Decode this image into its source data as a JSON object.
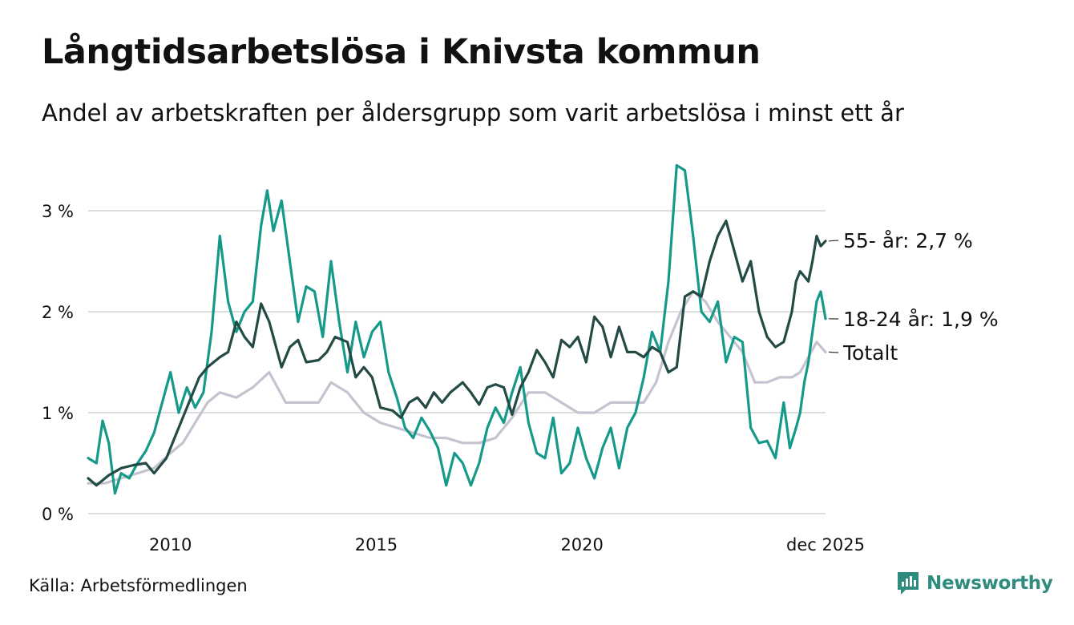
{
  "header": {
    "title": "Långtidsarbetslösa i Knivsta kommun",
    "subtitle": "Andel av arbetskraften per åldersgrupp som varit arbetslösa i minst ett år"
  },
  "footer": {
    "source": "Källa: Arbetsförmedlingen",
    "brand": "Newsworthy"
  },
  "colors": {
    "series_55": "#234a44",
    "series_1824": "#159a8a",
    "series_total": "#c5c3cf",
    "grid": "#dddddd",
    "brand": "#2e8b7e"
  },
  "chart_data": {
    "type": "line",
    "title": "Långtidsarbetslösa i Knivsta kommun",
    "xlabel": "",
    "ylabel": "",
    "x_range": [
      2008.0,
      2025.917
    ],
    "ylim": [
      0,
      3.5
    ],
    "y_ticks": [
      0,
      1,
      2,
      3
    ],
    "y_tick_labels": [
      "0 %",
      "1 %",
      "2 %",
      "3 %"
    ],
    "x_ticks": [
      2010,
      2015,
      2020,
      2025.917
    ],
    "x_tick_labels": [
      "2010",
      "2015",
      "2020",
      "dec 2025"
    ],
    "grid": true,
    "legend": "end-of-line labels",
    "series": [
      {
        "name": "55- år",
        "label": "55- år: 2,7 %",
        "color_key": "series_55",
        "points": [
          [
            2008.0,
            0.35
          ],
          [
            2008.2,
            0.28
          ],
          [
            2008.5,
            0.38
          ],
          [
            2008.8,
            0.45
          ],
          [
            2009.1,
            0.48
          ],
          [
            2009.4,
            0.5
          ],
          [
            2009.6,
            0.4
          ],
          [
            2009.9,
            0.55
          ],
          [
            2010.1,
            0.75
          ],
          [
            2010.4,
            1.05
          ],
          [
            2010.7,
            1.35
          ],
          [
            2010.9,
            1.45
          ],
          [
            2011.2,
            1.55
          ],
          [
            2011.4,
            1.6
          ],
          [
            2011.6,
            1.9
          ],
          [
            2011.8,
            1.75
          ],
          [
            2012.0,
            1.65
          ],
          [
            2012.2,
            2.08
          ],
          [
            2012.4,
            1.9
          ],
          [
            2012.7,
            1.45
          ],
          [
            2012.9,
            1.65
          ],
          [
            2013.1,
            1.72
          ],
          [
            2013.3,
            1.5
          ],
          [
            2013.6,
            1.52
          ],
          [
            2013.8,
            1.6
          ],
          [
            2014.0,
            1.75
          ],
          [
            2014.3,
            1.7
          ],
          [
            2014.5,
            1.35
          ],
          [
            2014.7,
            1.45
          ],
          [
            2014.9,
            1.35
          ],
          [
            2015.1,
            1.05
          ],
          [
            2015.4,
            1.02
          ],
          [
            2015.6,
            0.95
          ],
          [
            2015.8,
            1.1
          ],
          [
            2016.0,
            1.15
          ],
          [
            2016.2,
            1.05
          ],
          [
            2016.4,
            1.2
          ],
          [
            2016.6,
            1.1
          ],
          [
            2016.8,
            1.2
          ],
          [
            2017.1,
            1.3
          ],
          [
            2017.3,
            1.2
          ],
          [
            2017.5,
            1.08
          ],
          [
            2017.7,
            1.25
          ],
          [
            2017.9,
            1.28
          ],
          [
            2018.1,
            1.25
          ],
          [
            2018.3,
            0.98
          ],
          [
            2018.5,
            1.25
          ],
          [
            2018.7,
            1.4
          ],
          [
            2018.9,
            1.62
          ],
          [
            2019.1,
            1.5
          ],
          [
            2019.3,
            1.35
          ],
          [
            2019.5,
            1.72
          ],
          [
            2019.7,
            1.65
          ],
          [
            2019.9,
            1.75
          ],
          [
            2020.1,
            1.5
          ],
          [
            2020.3,
            1.95
          ],
          [
            2020.5,
            1.85
          ],
          [
            2020.7,
            1.55
          ],
          [
            2020.9,
            1.85
          ],
          [
            2021.1,
            1.6
          ],
          [
            2021.3,
            1.6
          ],
          [
            2021.5,
            1.55
          ],
          [
            2021.7,
            1.65
          ],
          [
            2021.9,
            1.6
          ],
          [
            2022.1,
            1.4
          ],
          [
            2022.3,
            1.45
          ],
          [
            2022.5,
            2.15
          ],
          [
            2022.7,
            2.2
          ],
          [
            2022.9,
            2.15
          ],
          [
            2023.1,
            2.5
          ],
          [
            2023.3,
            2.75
          ],
          [
            2023.5,
            2.9
          ],
          [
            2023.7,
            2.6
          ],
          [
            2023.9,
            2.3
          ],
          [
            2024.1,
            2.5
          ],
          [
            2024.3,
            2.0
          ],
          [
            2024.5,
            1.75
          ],
          [
            2024.7,
            1.65
          ],
          [
            2024.9,
            1.7
          ],
          [
            2025.0,
            1.85
          ],
          [
            2025.1,
            2.0
          ],
          [
            2025.2,
            2.3
          ],
          [
            2025.3,
            2.4
          ],
          [
            2025.4,
            2.35
          ],
          [
            2025.5,
            2.3
          ],
          [
            2025.6,
            2.5
          ],
          [
            2025.7,
            2.75
          ],
          [
            2025.8,
            2.65
          ],
          [
            2025.917,
            2.7
          ]
        ]
      },
      {
        "name": "18-24 år",
        "label": "18-24 år: 1,9 %",
        "color_key": "series_1824",
        "points": [
          [
            2008.0,
            0.55
          ],
          [
            2008.2,
            0.5
          ],
          [
            2008.35,
            0.92
          ],
          [
            2008.5,
            0.7
          ],
          [
            2008.65,
            0.2
          ],
          [
            2008.8,
            0.4
          ],
          [
            2009.0,
            0.35
          ],
          [
            2009.2,
            0.5
          ],
          [
            2009.4,
            0.62
          ],
          [
            2009.6,
            0.8
          ],
          [
            2009.8,
            1.1
          ],
          [
            2010.0,
            1.4
          ],
          [
            2010.2,
            1.0
          ],
          [
            2010.4,
            1.25
          ],
          [
            2010.6,
            1.05
          ],
          [
            2010.8,
            1.2
          ],
          [
            2011.0,
            1.8
          ],
          [
            2011.2,
            2.75
          ],
          [
            2011.4,
            2.1
          ],
          [
            2011.6,
            1.8
          ],
          [
            2011.8,
            2.0
          ],
          [
            2012.0,
            2.1
          ],
          [
            2012.2,
            2.85
          ],
          [
            2012.35,
            3.2
          ],
          [
            2012.5,
            2.8
          ],
          [
            2012.7,
            3.1
          ],
          [
            2012.9,
            2.5
          ],
          [
            2013.1,
            1.9
          ],
          [
            2013.3,
            2.25
          ],
          [
            2013.5,
            2.2
          ],
          [
            2013.7,
            1.75
          ],
          [
            2013.9,
            2.5
          ],
          [
            2014.1,
            1.9
          ],
          [
            2014.3,
            1.4
          ],
          [
            2014.5,
            1.9
          ],
          [
            2014.7,
            1.55
          ],
          [
            2014.9,
            1.8
          ],
          [
            2015.1,
            1.9
          ],
          [
            2015.3,
            1.4
          ],
          [
            2015.5,
            1.15
          ],
          [
            2015.7,
            0.85
          ],
          [
            2015.9,
            0.75
          ],
          [
            2016.1,
            0.95
          ],
          [
            2016.3,
            0.82
          ],
          [
            2016.5,
            0.65
          ],
          [
            2016.7,
            0.28
          ],
          [
            2016.9,
            0.6
          ],
          [
            2017.1,
            0.5
          ],
          [
            2017.3,
            0.28
          ],
          [
            2017.5,
            0.5
          ],
          [
            2017.7,
            0.85
          ],
          [
            2017.9,
            1.05
          ],
          [
            2018.1,
            0.9
          ],
          [
            2018.3,
            1.2
          ],
          [
            2018.5,
            1.45
          ],
          [
            2018.7,
            0.9
          ],
          [
            2018.9,
            0.6
          ],
          [
            2019.1,
            0.55
          ],
          [
            2019.3,
            0.95
          ],
          [
            2019.5,
            0.4
          ],
          [
            2019.7,
            0.5
          ],
          [
            2019.9,
            0.85
          ],
          [
            2020.1,
            0.55
          ],
          [
            2020.3,
            0.35
          ],
          [
            2020.5,
            0.65
          ],
          [
            2020.7,
            0.85
          ],
          [
            2020.9,
            0.45
          ],
          [
            2021.1,
            0.85
          ],
          [
            2021.3,
            1.0
          ],
          [
            2021.5,
            1.35
          ],
          [
            2021.7,
            1.8
          ],
          [
            2021.9,
            1.6
          ],
          [
            2022.1,
            2.3
          ],
          [
            2022.3,
            3.45
          ],
          [
            2022.5,
            3.4
          ],
          [
            2022.7,
            2.75
          ],
          [
            2022.9,
            2.0
          ],
          [
            2023.1,
            1.9
          ],
          [
            2023.3,
            2.1
          ],
          [
            2023.5,
            1.5
          ],
          [
            2023.7,
            1.75
          ],
          [
            2023.9,
            1.7
          ],
          [
            2024.1,
            0.85
          ],
          [
            2024.3,
            0.7
          ],
          [
            2024.5,
            0.72
          ],
          [
            2024.7,
            0.55
          ],
          [
            2024.9,
            1.1
          ],
          [
            2025.05,
            0.65
          ],
          [
            2025.2,
            0.85
          ],
          [
            2025.3,
            1.0
          ],
          [
            2025.4,
            1.3
          ],
          [
            2025.5,
            1.5
          ],
          [
            2025.6,
            1.8
          ],
          [
            2025.7,
            2.1
          ],
          [
            2025.8,
            2.2
          ],
          [
            2025.917,
            1.93
          ]
        ]
      },
      {
        "name": "Totalt",
        "label": "Totalt",
        "color_key": "series_total",
        "points": [
          [
            2008.0,
            0.3
          ],
          [
            2008.4,
            0.3
          ],
          [
            2008.8,
            0.35
          ],
          [
            2009.2,
            0.4
          ],
          [
            2009.6,
            0.45
          ],
          [
            2010.0,
            0.6
          ],
          [
            2010.3,
            0.7
          ],
          [
            2010.6,
            0.9
          ],
          [
            2010.9,
            1.1
          ],
          [
            2011.2,
            1.2
          ],
          [
            2011.6,
            1.15
          ],
          [
            2012.0,
            1.25
          ],
          [
            2012.4,
            1.4
          ],
          [
            2012.8,
            1.1
          ],
          [
            2013.2,
            1.1
          ],
          [
            2013.6,
            1.1
          ],
          [
            2013.9,
            1.3
          ],
          [
            2014.3,
            1.2
          ],
          [
            2014.7,
            1.0
          ],
          [
            2015.1,
            0.9
          ],
          [
            2015.5,
            0.85
          ],
          [
            2015.9,
            0.8
          ],
          [
            2016.3,
            0.75
          ],
          [
            2016.7,
            0.75
          ],
          [
            2017.1,
            0.7
          ],
          [
            2017.5,
            0.7
          ],
          [
            2017.9,
            0.75
          ],
          [
            2018.3,
            0.95
          ],
          [
            2018.7,
            1.2
          ],
          [
            2019.1,
            1.2
          ],
          [
            2019.5,
            1.1
          ],
          [
            2019.9,
            1.0
          ],
          [
            2020.3,
            1.0
          ],
          [
            2020.7,
            1.1
          ],
          [
            2021.1,
            1.1
          ],
          [
            2021.5,
            1.1
          ],
          [
            2021.8,
            1.3
          ],
          [
            2022.1,
            1.7
          ],
          [
            2022.4,
            2.0
          ],
          [
            2022.7,
            2.2
          ],
          [
            2023.0,
            2.1
          ],
          [
            2023.3,
            1.9
          ],
          [
            2023.6,
            1.75
          ],
          [
            2023.9,
            1.6
          ],
          [
            2024.2,
            1.3
          ],
          [
            2024.5,
            1.3
          ],
          [
            2024.8,
            1.35
          ],
          [
            2025.1,
            1.35
          ],
          [
            2025.3,
            1.4
          ],
          [
            2025.5,
            1.55
          ],
          [
            2025.7,
            1.7
          ],
          [
            2025.917,
            1.6
          ]
        ]
      }
    ]
  }
}
